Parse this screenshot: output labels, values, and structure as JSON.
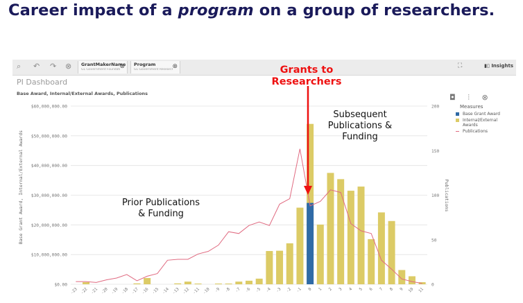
{
  "headline": {
    "pre": "Career impact of a ",
    "em": "program",
    "post": " on a group of researchers."
  },
  "toolbar": {
    "filters": [
      {
        "label": "GrantMakerName",
        "sub": "GL Government Foundation..."
      },
      {
        "label": "Program",
        "sub": "GL Government Research..."
      }
    ],
    "insights_label": "Insights"
  },
  "sheet_title": "PI Dashboard",
  "chart_subtitle": "Base Award, Internal/External Awards, Publications",
  "legend": {
    "title": "Measures",
    "items": [
      {
        "label": "Base Grant Award",
        "color": "#2f6aa6"
      },
      {
        "label": "Internal/External Awards",
        "color": "#dccb66"
      },
      {
        "label": "Publications",
        "color": "#e06a80"
      }
    ]
  },
  "annotations": {
    "grants": "Grants to Researchers",
    "prior": "Prior Publications & Funding",
    "subsequent": "Subsequent Publications & Funding"
  },
  "chart_data": {
    "type": "bar",
    "categories": [
      "-23",
      "-22",
      "-21",
      "-20",
      "-19",
      "-18",
      "-17",
      "-16",
      "-15",
      "-14",
      "-13",
      "-12",
      "-11",
      "-10",
      "-9",
      "-8",
      "-7",
      "-6",
      "-5",
      "-4",
      "-3",
      "-2",
      "-1",
      "0",
      "1",
      "2",
      "3",
      "4",
      "5",
      "6",
      "7",
      "8",
      "9",
      "10",
      "11"
    ],
    "ylabel": "Base Grant Award, Internal/External Awards",
    "y2label": "Publications",
    "ylim": [
      0,
      60000000
    ],
    "y2lim": [
      0,
      200
    ],
    "yticks": [
      "$0.00",
      "$10,000,000.00",
      "$20,000,000.00",
      "$30,000,000.00",
      "$40,000,000.00",
      "$50,000,000.00",
      "$60,000,000.00"
    ],
    "y2ticks": [
      "0",
      "50",
      "100",
      "150",
      "200"
    ],
    "series": [
      {
        "name": "Internal/External Awards",
        "type": "bar",
        "values": [
          0,
          700000,
          0,
          0,
          0,
          0,
          300000,
          2100000,
          0,
          0,
          300000,
          900000,
          250000,
          0,
          250000,
          250000,
          900000,
          1200000,
          1900000,
          11200000,
          11300000,
          13800000,
          25800000,
          54000000,
          20100000,
          37500000,
          35400000,
          31500000,
          32900000,
          15200000,
          24200000,
          21300000,
          4800000,
          2700000,
          700000
        ]
      },
      {
        "name": "Base Grant Award",
        "type": "bar",
        "values": [
          0,
          0,
          0,
          0,
          0,
          0,
          0,
          0,
          0,
          0,
          0,
          0,
          0,
          0,
          0,
          0,
          0,
          0,
          0,
          0,
          0,
          0,
          0,
          27400000,
          0,
          0,
          0,
          0,
          0,
          0,
          0,
          0,
          0,
          0,
          0
        ]
      },
      {
        "name": "Publications",
        "type": "line",
        "axis": "y2",
        "values": [
          3,
          3,
          2,
          5,
          7,
          11,
          4,
          9,
          12,
          27,
          28,
          28,
          34,
          37,
          44,
          59,
          57,
          66,
          70,
          66,
          90,
          96,
          152,
          88,
          93,
          106,
          103,
          68,
          60,
          57,
          27,
          17,
          6,
          3,
          1
        ]
      }
    ]
  }
}
